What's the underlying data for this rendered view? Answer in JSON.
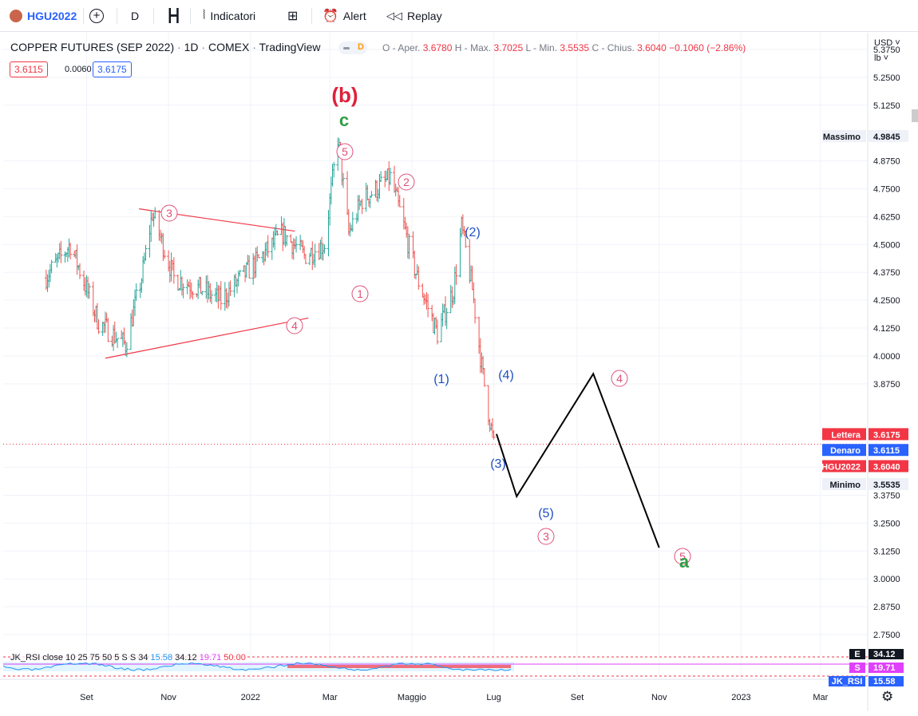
{
  "toolbar": {
    "symbol": "HGU2022",
    "interval": "D",
    "indicators": "Indicatori",
    "alert": "Alert",
    "replay": "Replay"
  },
  "legend": {
    "title": "COPPER FUTURES (SEP 2022)",
    "sep1": "·",
    "timeframe": "1D",
    "sep2": "·",
    "exchange": "COMEX",
    "sep3": "·",
    "source": "TradingView",
    "d_badge": "D",
    "o_label": "O - Aper.",
    "o_val": "3.6780",
    "h_label": "H - Max.",
    "h_val": "3.7025",
    "l_label": "L - Min.",
    "l_val": "3.5535",
    "c_label": "C - Chius.",
    "c_val": "3.6040",
    "change": "−0.1060 (−2.86%)",
    "bid": "3.6115",
    "spread": "0.0060",
    "ask": "3.6175"
  },
  "price_axis": {
    "currency": "USD",
    "unit": "lb",
    "ticks": [
      "5.3750",
      "5.2500",
      "5.1250",
      "4.8750",
      "4.7500",
      "4.6250",
      "4.5000",
      "4.3750",
      "4.2500",
      "4.1250",
      "4.0000",
      "3.8750",
      "3.5000",
      "3.3750",
      "3.2500",
      "3.1250",
      "3.0000",
      "2.8750",
      "2.7500"
    ],
    "tick_values": [
      5.375,
      5.25,
      5.125,
      4.875,
      4.75,
      4.625,
      4.5,
      4.375,
      4.25,
      4.125,
      4.0,
      3.875,
      3.5,
      3.375,
      3.25,
      3.125,
      3.0,
      2.875,
      2.75
    ],
    "max_label": "Massimo",
    "max_val": "4.9845",
    "ask_label": "Lettera",
    "ask_val": "3.6175",
    "bid_label": "Denaro",
    "bid_val": "3.6115",
    "last_label": "HGU2022",
    "last_val": "3.6040",
    "min_label": "Minimo",
    "min_val": "3.5535"
  },
  "time_axis": {
    "labels": [
      "Set",
      "Nov",
      "2022",
      "Mar",
      "Maggio",
      "Lug",
      "Set",
      "Nov",
      "2023",
      "Mar"
    ]
  },
  "rsi": {
    "label": "JK_RSI close 10 25 75 50 5 S S 34",
    "v1": "15.58",
    "v2": "34.12",
    "v3": "19.71",
    "v4": "50.00",
    "e_label": "E",
    "e_val": "34.12",
    "s_label": "S",
    "s_val": "19.71",
    "jk_label": "JK_RSI",
    "jk_val": "15.58"
  },
  "annotations": [
    {
      "text": "(b)",
      "color": "#e0203a"
    },
    {
      "text": "c",
      "color": "#2e9e44"
    },
    {
      "text": "5",
      "color": "#e0507a"
    },
    {
      "text": "3",
      "color": "#e0507a"
    },
    {
      "text": "4",
      "color": "#e0507a"
    },
    {
      "text": "1",
      "color": "#e0507a"
    },
    {
      "text": "2",
      "color": "#e0507a"
    },
    {
      "text": "(2)",
      "color": "#1f4fbf"
    },
    {
      "text": "(1)",
      "color": "#1f4fbf"
    },
    {
      "text": "(4)",
      "color": "#1f4fbf"
    },
    {
      "text": "(3)",
      "color": "#1f4fbf"
    },
    {
      "text": "(5)",
      "color": "#1f4fbf"
    },
    {
      "text": "3",
      "color": "#e0507a"
    },
    {
      "text": "4",
      "color": "#e0507a"
    },
    {
      "text": "5",
      "color": "#e0507a"
    },
    {
      "text": "a",
      "color": "#2e9e44"
    }
  ],
  "chart_data": {
    "type": "line",
    "title": "COPPER FUTURES (SEP 2022)",
    "ylim": [
      2.7,
      5.45
    ],
    "series": [
      {
        "x": [
          "2021-08-01",
          "2021-08-20",
          "2021-09-10",
          "2021-09-30",
          "2021-10-12",
          "2021-10-20",
          "2021-11-05",
          "2021-11-25",
          "2021-12-10",
          "2021-12-25",
          "2022-01-10",
          "2022-01-25",
          "2022-02-10",
          "2022-02-25",
          "2022-03-07",
          "2022-03-15",
          "2022-03-25",
          "2022-04-05",
          "2022-04-15",
          "2022-04-22",
          "2022-05-05",
          "2022-05-20",
          "2022-06-01",
          "2022-06-07",
          "2022-06-15",
          "2022-06-22",
          "2022-06-27",
          "2022-07-01"
        ],
        "values": [
          4.35,
          4.5,
          4.15,
          4.05,
          4.35,
          4.64,
          4.35,
          4.3,
          4.25,
          4.35,
          4.45,
          4.55,
          4.45,
          4.5,
          4.98,
          4.55,
          4.7,
          4.75,
          4.8,
          4.65,
          4.35,
          4.1,
          4.3,
          4.58,
          4.3,
          3.95,
          3.75,
          3.6
        ]
      }
    ],
    "projection": {
      "x": [
        "2022-07-03",
        "2022-07-18",
        "2022-09-13",
        "2022-11-01"
      ],
      "values": [
        3.65,
        3.37,
        3.92,
        3.14
      ]
    },
    "triangle": {
      "upper": {
        "x": [
          "2021-10-10",
          "2022-02-03"
        ],
        "values": [
          4.66,
          4.56
        ]
      },
      "lower": {
        "x": [
          "2021-09-15",
          "2022-02-13"
        ],
        "values": [
          3.99,
          4.17
        ]
      }
    },
    "last_price": 3.604,
    "max_price": 4.9845,
    "min_price": 3.5535
  }
}
